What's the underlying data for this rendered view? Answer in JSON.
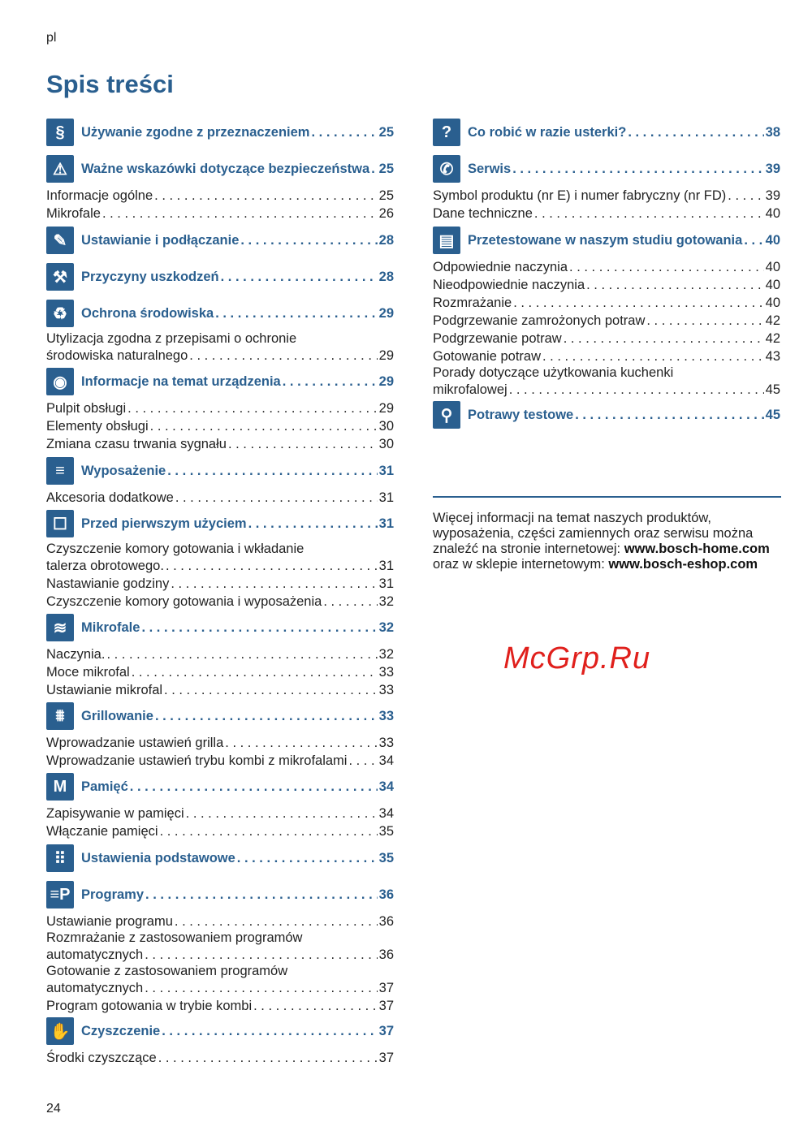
{
  "header": {
    "lang": "pl",
    "title": "Spis treści"
  },
  "page_number": "24",
  "accent_color": "#2a5f8f",
  "left": [
    {
      "icon": "regulation-hand-icon",
      "glyph": "§",
      "title": "Używanie zgodne z przeznaczeniem",
      "page": "25",
      "items": []
    },
    {
      "icon": "warning-icon",
      "glyph": "⚠",
      "title": "Ważne wskazówki dotyczące bezpieczeństwa",
      "page": "25",
      "items": [
        {
          "text": "Informacje ogólne",
          "page": "25"
        },
        {
          "text": "Mikrofale",
          "page": "26"
        }
      ]
    },
    {
      "icon": "wrench-icon",
      "glyph": "✎",
      "title": "Ustawianie i podłączanie",
      "page": "28",
      "items": []
    },
    {
      "icon": "hammer-icon",
      "glyph": "⚒",
      "title": "Przyczyny uszkodzeń",
      "page": "28",
      "items": []
    },
    {
      "icon": "environment-icon",
      "glyph": "♻",
      "title": "Ochrona środowiska",
      "page": "29",
      "items": [
        {
          "pre": "Utylizacja zgodna z przepisami o ochronie",
          "text": "środowiska naturalnego",
          "page": "29"
        }
      ]
    },
    {
      "icon": "eye-icon",
      "glyph": "◉",
      "title": "Informacje na temat urządzenia",
      "page": "29",
      "items": [
        {
          "text": "Pulpit obsługi",
          "page": "29"
        },
        {
          "text": "Elementy obsługi",
          "page": "30"
        },
        {
          "text": "Zmiana czasu trwania sygnału",
          "page": "30"
        }
      ]
    },
    {
      "icon": "accessories-icon",
      "glyph": "≡",
      "title": "Wyposażenie",
      "page": "31",
      "items": [
        {
          "text": "Akcesoria dodatkowe",
          "page": "31"
        }
      ]
    },
    {
      "icon": "first-use-icon",
      "glyph": "☐",
      "title": "Przed pierwszym użyciem",
      "page": "31",
      "items": [
        {
          "pre": "Czyszczenie komory gotowania i wkładanie",
          "text": "talerza obrotowego.",
          "page": "31"
        },
        {
          "text": "Nastawianie godziny",
          "page": "31"
        },
        {
          "text": "Czyszczenie komory gotowania i wyposażenia",
          "page": "32"
        }
      ]
    },
    {
      "icon": "microwave-icon",
      "glyph": "≋",
      "title": "Mikrofale",
      "page": "32",
      "items": [
        {
          "text": "Naczynia.",
          "page": "32"
        },
        {
          "text": "Moce mikrofal",
          "page": "33"
        },
        {
          "text": "Ustawianie mikrofal",
          "page": "33"
        }
      ]
    },
    {
      "icon": "grill-icon",
      "glyph": "⩩",
      "title": "Grillowanie",
      "page": "33",
      "items": [
        {
          "text": "Wprowadzanie ustawień grilla",
          "page": "33"
        },
        {
          "text": "Wprowadzanie ustawień trybu kombi z mikrofalami",
          "page": "34"
        }
      ]
    },
    {
      "icon": "memory-icon",
      "glyph": "M",
      "title": "Pamięć",
      "page": "34",
      "items": [
        {
          "text": "Zapisywanie w pamięci",
          "page": "34"
        },
        {
          "text": "Włączanie pamięci",
          "page": "35"
        }
      ]
    },
    {
      "icon": "settings-grid-icon",
      "glyph": "⠿",
      "title": "Ustawienia podstawowe",
      "page": "35",
      "items": []
    },
    {
      "icon": "programs-icon",
      "glyph": "≡P",
      "title": "Programy",
      "page": "36",
      "items": [
        {
          "text": "Ustawianie programu",
          "page": "36"
        },
        {
          "pre": "Rozmrażanie z zastosowaniem programów",
          "text": "automatycznych",
          "page": "36"
        },
        {
          "pre": "Gotowanie z zastosowaniem programów",
          "text": "automatycznych",
          "page": "37"
        },
        {
          "text": "Program gotowania w trybie kombi",
          "page": "37"
        }
      ]
    },
    {
      "icon": "cleaning-icon",
      "glyph": "✋",
      "title": "Czyszczenie",
      "page": "37",
      "items": [
        {
          "text": "Środki czyszczące",
          "page": "37"
        }
      ]
    }
  ],
  "right": [
    {
      "icon": "question-icon",
      "glyph": "?",
      "title": "Co robić w razie usterki?",
      "page": "38",
      "items": []
    },
    {
      "icon": "phone-icon",
      "glyph": "✆",
      "title": "Serwis",
      "page": "39",
      "items": [
        {
          "text": "Symbol produktu (nr E) i numer fabryczny (nr FD)",
          "page": "39"
        },
        {
          "text": "Dane techniczne",
          "page": "40"
        }
      ]
    },
    {
      "icon": "recipe-book-icon",
      "glyph": "▤",
      "title": "Przetestowane w naszym studiu gotowania",
      "page": "40",
      "items": [
        {
          "text": "Odpowiednie naczynia",
          "page": "40"
        },
        {
          "text": "Nieodpowiednie naczynia",
          "page": "40"
        },
        {
          "text": "Rozmrażanie",
          "page": "40"
        },
        {
          "text": "Podgrzewanie zamrożonych potraw",
          "page": "42"
        },
        {
          "text": "Podgrzewanie potraw",
          "page": "42"
        },
        {
          "text": "Gotowanie potraw",
          "page": "43"
        },
        {
          "pre": "Porady dotyczące użytkowania kuchenki",
          "text": "mikrofalowej",
          "page": "45"
        }
      ]
    },
    {
      "icon": "magnifier-icon",
      "glyph": "⚲",
      "title": "Potrawy testowe",
      "page": "45",
      "items": []
    }
  ],
  "footer": {
    "line1": "Więcej informacji na temat naszych produktów,",
    "line2": "wyposażenia, części zamiennych oraz serwisu można",
    "line3": "znaleźć na stronie internetowej: ",
    "link1": "www.bosch-home.com",
    "line4": "oraz w sklepie internetowym: ",
    "link2": "www.bosch-eshop.com"
  },
  "watermark": "McGrp.Ru"
}
